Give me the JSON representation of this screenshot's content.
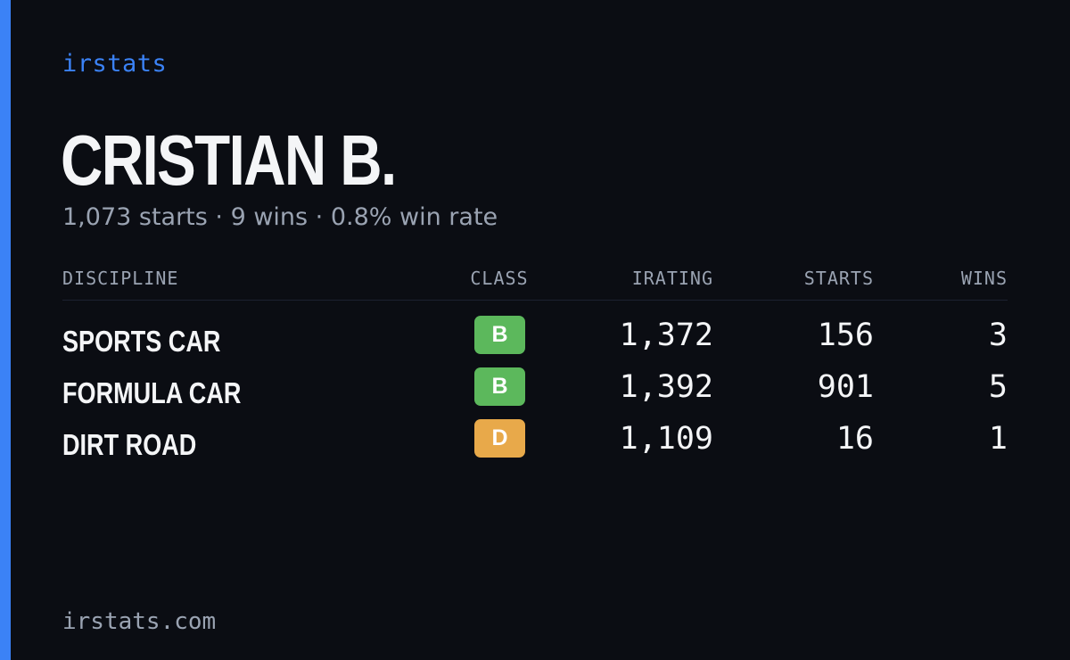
{
  "brand": "irstats",
  "driver": {
    "name": "CRISTIAN B.",
    "summary": "1,073 starts · 9 wins · 0.8% win rate"
  },
  "table": {
    "headers": {
      "discipline": "DISCIPLINE",
      "class": "CLASS",
      "irating": "IRATING",
      "starts": "STARTS",
      "wins": "WINS"
    },
    "rows": [
      {
        "discipline": "SPORTS CAR",
        "class": "B",
        "class_color": "#5cb85c",
        "irating": "1,372",
        "starts": "156",
        "wins": "3"
      },
      {
        "discipline": "FORMULA CAR",
        "class": "B",
        "class_color": "#5cb85c",
        "irating": "1,392",
        "starts": "901",
        "wins": "5"
      },
      {
        "discipline": "DIRT ROAD",
        "class": "D",
        "class_color": "#e8a94a",
        "irating": "1,109",
        "starts": "16",
        "wins": "1"
      }
    ]
  },
  "footer": "irstats.com",
  "colors": {
    "accent": "#3b82f6",
    "background": "#0b0d13",
    "text": "#f4f5f7",
    "muted": "#9aa3b2"
  }
}
